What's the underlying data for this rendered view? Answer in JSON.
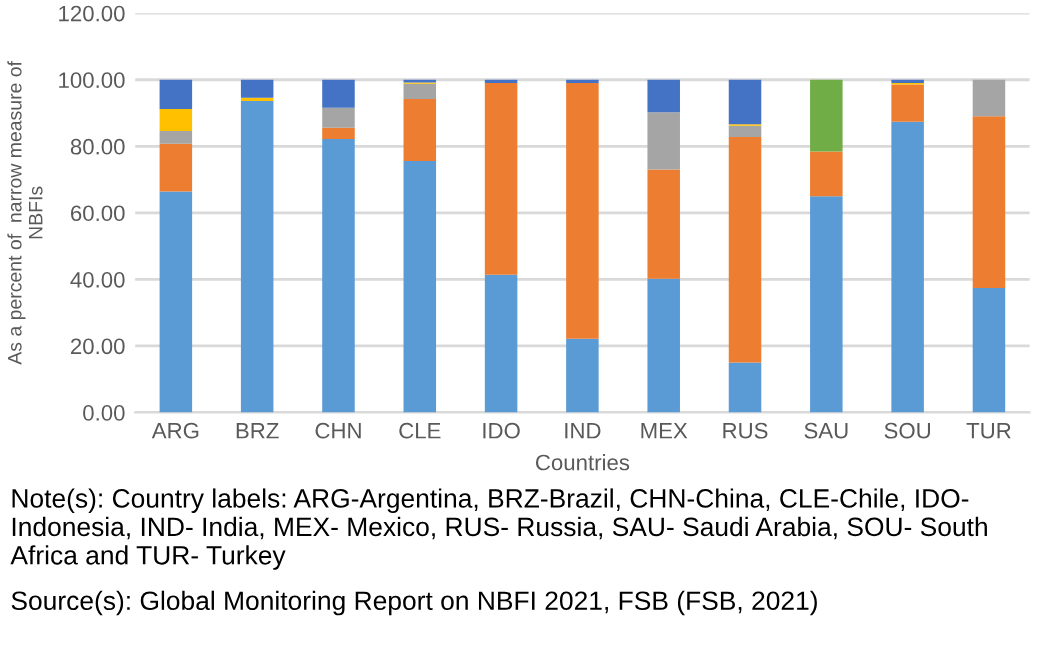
{
  "chart_data": {
    "type": "bar",
    "stacked": true,
    "xlabel": "Countries",
    "ylabel": "As a percent of  narrow measure of\nNBFIs",
    "categories": [
      "ARG",
      "BRZ",
      "CHN",
      "CLE",
      "IDO",
      "IND",
      "MEX",
      "RUS",
      "SAU",
      "SOU",
      "TUR"
    ],
    "series": [
      {
        "color": "#5b9bd5",
        "values": [
          66.4,
          93.6,
          82.2,
          75.6,
          41.4,
          22.2,
          40.2,
          15.0,
          65.0,
          87.4,
          37.4
        ]
      },
      {
        "color": "#ed7d31",
        "values": [
          14.4,
          null,
          3.4,
          18.6,
          57.6,
          76.8,
          32.8,
          67.8,
          13.4,
          11.2,
          51.6
        ]
      },
      {
        "color": "#a5a5a5",
        "values": [
          3.8,
          null,
          6.0,
          4.6,
          null,
          null,
          17.2,
          3.4,
          null,
          null,
          11.0
        ]
      },
      {
        "color": "#ffc000",
        "values": [
          6.6,
          1.0,
          null,
          0.4,
          null,
          null,
          null,
          0.4,
          null,
          0.4,
          null
        ]
      },
      {
        "color": "#4472c4",
        "values": [
          8.8,
          5.4,
          8.4,
          0.8,
          1.0,
          1.0,
          9.8,
          13.4,
          null,
          1.0,
          null
        ]
      },
      {
        "color": "#70ad47",
        "values": [
          null,
          null,
          null,
          null,
          null,
          null,
          null,
          null,
          21.6,
          null,
          null
        ]
      }
    ],
    "ylim": [
      0,
      120
    ],
    "yticks": [
      {
        "value": 0,
        "label": "0.00"
      },
      {
        "value": 20,
        "label": "20.00"
      },
      {
        "value": 40,
        "label": "40.00"
      },
      {
        "value": 60,
        "label": "60.00"
      },
      {
        "value": 80,
        "label": "80.00"
      },
      {
        "value": 100,
        "label": "100.00"
      },
      {
        "value": 120,
        "label": "120.00"
      }
    ],
    "grid": "y",
    "annotations": [
      "Note(s): Country labels: ARG-Argentina, BRZ-Brazil, CHN-China, CLE-Chile, IDO- Indonesia, IND- India, MEX- Mexico, RUS- Russia, SAU- Saudi Arabia, SOU- South Africa and TUR- Turkey",
      "Source(s): Global Monitoring Report on NBFI 2021, FSB (FSB, 2021)"
    ]
  }
}
